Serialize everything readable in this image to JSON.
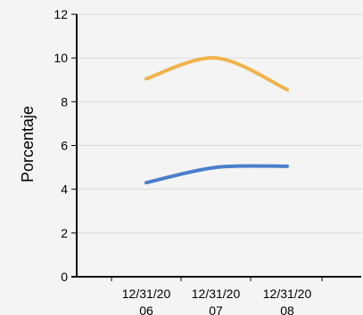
{
  "chart_data": {
    "type": "line",
    "title": "",
    "xlabel": "",
    "ylabel": "Porcentaje",
    "ylim": [
      0,
      12
    ],
    "yticks": [
      0,
      2,
      4,
      6,
      8,
      10,
      12
    ],
    "grid": true,
    "legend": "none",
    "categories": [
      [
        "12/31/20",
        "06"
      ],
      [
        "12/31/20",
        "07"
      ],
      [
        "12/31/20",
        "08"
      ]
    ],
    "series": [
      {
        "color": "#f0b24a",
        "values": [
          9.05,
          10.0,
          8.55
        ],
        "smooth": true
      },
      {
        "color": "#4a7fcb",
        "values": [
          4.3,
          5.0,
          5.05
        ],
        "smooth": true
      }
    ]
  }
}
